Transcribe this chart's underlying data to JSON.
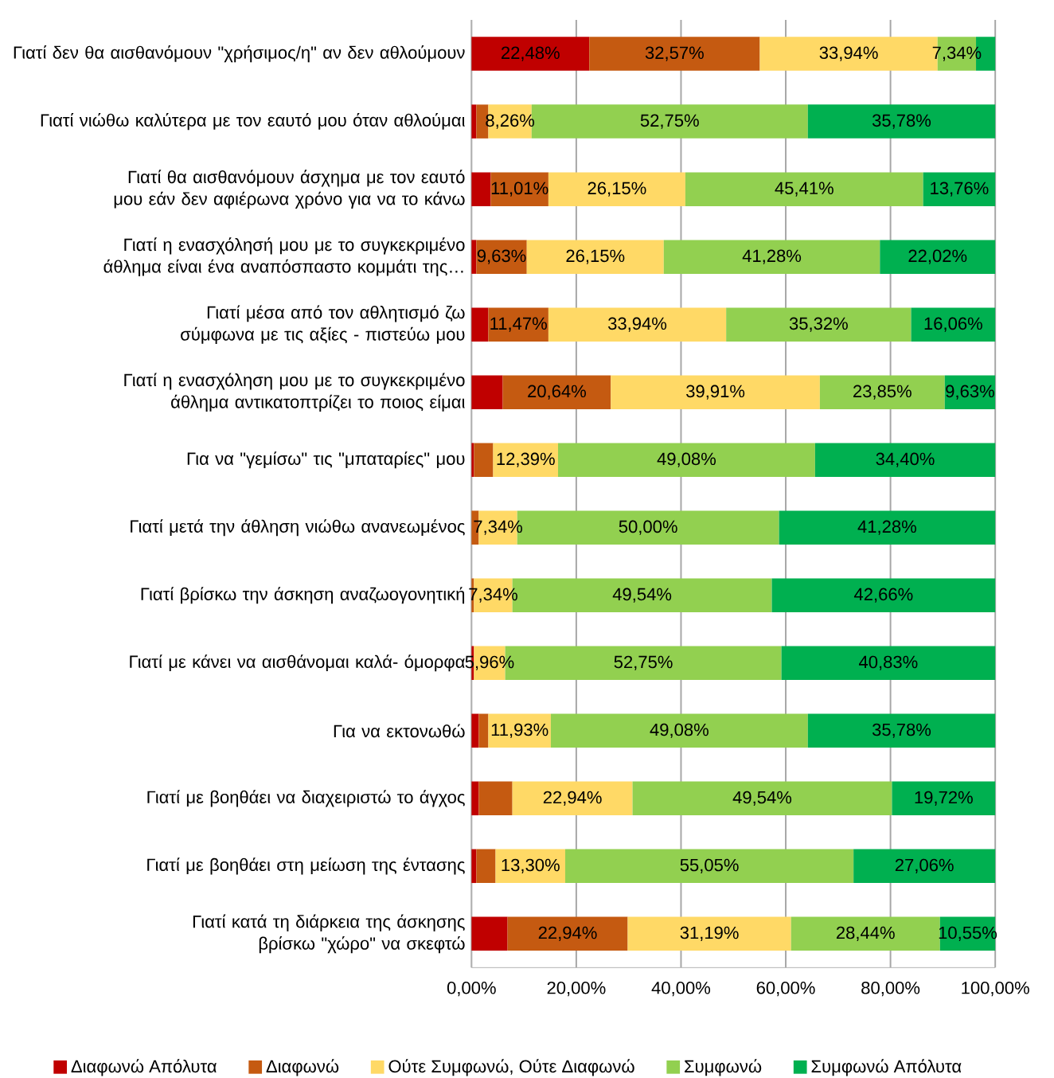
{
  "chart_data": {
    "type": "bar",
    "orientation": "horizontal",
    "stacked": true,
    "categories": [
      "Γιατί δεν θα αισθανόμουν \"χρήσιμος/η\" αν δεν αθλούμουν",
      "Γιατί νιώθω καλύτερα με τον εαυτό μου όταν αθλούμαι",
      "Γιατί θα αισθανόμουν άσχημα με τον εαυτό μου εάν δεν αφιέρωνα χρόνο για να το κάνω",
      "Γιατί η ενασχόλησή μου με το συγκεκριμένο άθλημα είναι ένα αναπόσπαστο κομμάτι της…",
      "Γιατί μέσα από τον αθλητισμό ζω σύμφωνα με τις αξίες - πιστεύω μου",
      "Γιατί η ενασχόληση μου με το συγκεκριμένο άθλημα αντικατοπτρίζει το ποιος είμαι",
      "Για να \"γεμίσω\" τις \"μπαταρίες\" μου",
      "Γιατί μετά την άθληση νιώθω ανανεωμένος",
      "Γιατί βρίσκω την άσκηση αναζωογονητική",
      "Γιατί με κάνει να αισθάνομαι καλά- όμορφα",
      "Για να εκτονωθώ",
      "Γιατί με βοηθάει να διαχειριστώ το άγχος",
      "Γιατί με βοηθάει στη μείωση της έντασης",
      "Γιατί κατά τη διάρκεια της άσκησης βρίσκω \"χώρο\" να σκεφτώ"
    ],
    "series": [
      {
        "name": "Διαφωνώ Απόλυτα",
        "color": "#c00000",
        "values": [
          22.48,
          0.92,
          3.67,
          0.92,
          3.21,
          5.96,
          0.46,
          0,
          0,
          0.46,
          1.38,
          1.38,
          0.92,
          6.88
        ],
        "value_labels": [
          "22,48%",
          null,
          null,
          null,
          null,
          null,
          null,
          null,
          null,
          null,
          null,
          null,
          null,
          null
        ]
      },
      {
        "name": "Διαφωνώ",
        "color": "#c55a11",
        "values": [
          32.57,
          2.29,
          11.01,
          9.63,
          11.47,
          20.64,
          3.67,
          1.38,
          0.46,
          0,
          1.83,
          6.42,
          3.67,
          22.94
        ],
        "value_labels": [
          "32,57%",
          null,
          "11,01%",
          "9,63%",
          "11,47%",
          "20,64%",
          null,
          null,
          null,
          null,
          null,
          null,
          null,
          "22,94%"
        ]
      },
      {
        "name": "Ούτε Συμφωνώ, Ούτε Διαφωνώ",
        "color": "#ffd966",
        "values": [
          33.94,
          8.26,
          26.15,
          26.15,
          33.94,
          39.91,
          12.39,
          7.34,
          7.34,
          5.96,
          11.93,
          22.94,
          13.3,
          31.19
        ],
        "value_labels": [
          "33,94%",
          "8,26%",
          "26,15%",
          "26,15%",
          "33,94%",
          "39,91%",
          "12,39%",
          "7,34%",
          "7,34%",
          "5,96%",
          "11,93%",
          "22,94%",
          "13,30%",
          "31,19%"
        ]
      },
      {
        "name": "Συμφωνώ",
        "color": "#92d050",
        "values": [
          7.34,
          52.75,
          45.41,
          41.28,
          35.32,
          23.85,
          49.08,
          50.0,
          49.54,
          52.75,
          49.08,
          49.54,
          55.05,
          28.44
        ],
        "value_labels": [
          "7,34%",
          "52,75%",
          "45,41%",
          "41,28%",
          "35,32%",
          "23,85%",
          "49,08%",
          "50,00%",
          "49,54%",
          "52,75%",
          "49,08%",
          "49,54%",
          "55,05%",
          "28,44%"
        ]
      },
      {
        "name": "Συμφωνώ Απόλυτα",
        "color": "#00b050",
        "values": [
          3.67,
          35.78,
          13.76,
          22.02,
          16.06,
          9.63,
          34.4,
          41.28,
          42.66,
          40.83,
          35.78,
          19.72,
          27.06,
          10.55
        ],
        "value_labels": [
          null,
          "35,78%",
          "13,76%",
          "22,02%",
          "16,06%",
          "9,63%",
          "34,40%",
          "41,28%",
          "42,66%",
          "40,83%",
          "35,78%",
          "19,72%",
          "27,06%",
          "10,55%"
        ]
      }
    ],
    "xlim": [
      0,
      100
    ],
    "xticks": [
      {
        "value": 0,
        "label": "0,00%"
      },
      {
        "value": 20,
        "label": "20,00%"
      },
      {
        "value": 40,
        "label": "40,00%"
      },
      {
        "value": 60,
        "label": "60,00%"
      },
      {
        "value": 80,
        "label": "80,00%"
      },
      {
        "value": 100,
        "label": "100,00%"
      }
    ],
    "grid": "x",
    "legend": "bottom"
  }
}
